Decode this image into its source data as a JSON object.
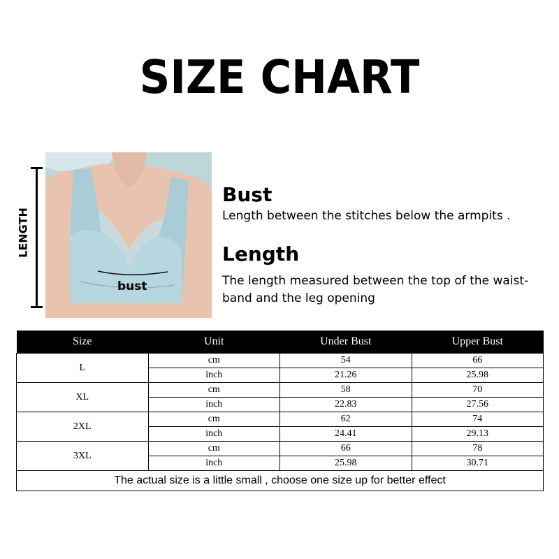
{
  "title": "SIZE CHART",
  "diagram": {
    "length_label": "LENGTH",
    "bust_label": "bust"
  },
  "definitions": [
    {
      "heading": "Bust",
      "text": "Length between the stitches below the armpits ."
    },
    {
      "heading": "Length",
      "text": "The length measured between the top of the waist-band and the leg opening"
    }
  ],
  "table": {
    "headers": [
      "Size",
      "Unit",
      "Under Bust",
      "Upper Bust"
    ],
    "rows": [
      {
        "size": "L",
        "cm": {
          "unit": "cm",
          "under": "54",
          "upper": "66"
        },
        "inch": {
          "unit": "inch",
          "under": "21.26",
          "upper": "25.98"
        }
      },
      {
        "size": "XL",
        "cm": {
          "unit": "cm",
          "under": "58",
          "upper": "70"
        },
        "inch": {
          "unit": "inch",
          "under": "22.83",
          "upper": "27.56"
        }
      },
      {
        "size": "2XL",
        "cm": {
          "unit": "cm",
          "under": "62",
          "upper": "74"
        },
        "inch": {
          "unit": "inch",
          "under": "24.41",
          "upper": "29.13"
        }
      },
      {
        "size": "3XL",
        "cm": {
          "unit": "cm",
          "under": "66",
          "upper": "78"
        },
        "inch": {
          "unit": "inch",
          "under": "25.98",
          "upper": "30.71"
        }
      }
    ],
    "note": "The actual size is a little small , choose one size up for better effect"
  }
}
